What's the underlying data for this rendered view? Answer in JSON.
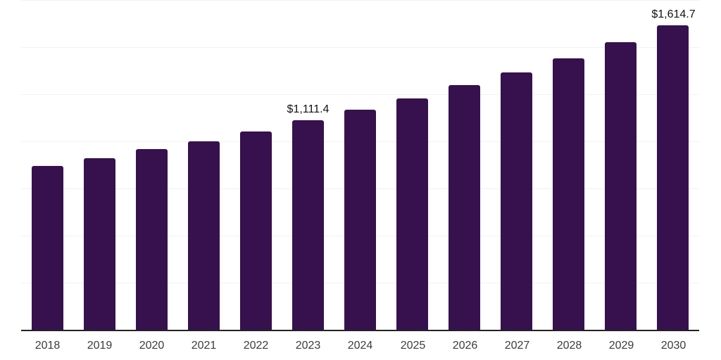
{
  "chart_data": {
    "type": "bar",
    "title": "",
    "xlabel": "",
    "ylabel": "",
    "categories": [
      "2018",
      "2019",
      "2020",
      "2021",
      "2022",
      "2023",
      "2024",
      "2025",
      "2026",
      "2027",
      "2028",
      "2029",
      "2030"
    ],
    "values": [
      868,
      909,
      958,
      999,
      1053,
      1111.4,
      1169,
      1229,
      1297,
      1365,
      1442,
      1526,
      1614.7
    ],
    "ylim": [
      0,
      1750
    ],
    "grid_step": 250,
    "grid": true,
    "y_axis_labels_visible": false,
    "legend": null,
    "annotations": [
      {
        "category": "2023",
        "text": "$1,111.4"
      },
      {
        "category": "2030",
        "text": "$1,614.7"
      }
    ],
    "colors": {
      "bar": "#36114e",
      "axis_line": "#222222",
      "gridline": "#f2f2f2",
      "tick_label": "#3c3c3c",
      "data_label": "#111111",
      "background": "#ffffff"
    }
  }
}
